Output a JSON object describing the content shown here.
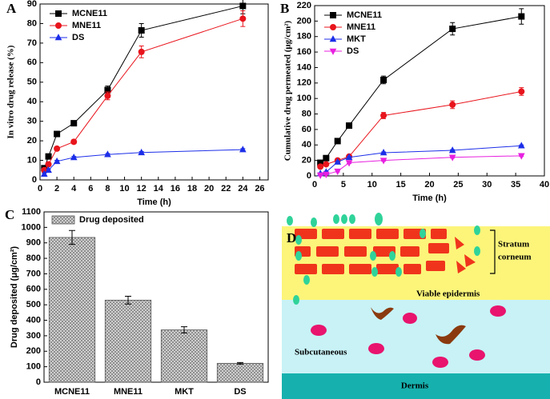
{
  "chart_data": [
    {
      "type": "line",
      "label": "A",
      "xlabel": "Time (h)",
      "ylabel": "In vitro drug release (%)",
      "x": [
        0.5,
        1,
        2,
        4,
        8,
        12,
        24
      ],
      "xlim": [
        0,
        27
      ],
      "xticks": [
        0,
        2,
        4,
        6,
        8,
        10,
        12,
        14,
        16,
        18,
        20,
        22,
        24,
        26
      ],
      "ylim": [
        0,
        90
      ],
      "yticks": [
        0,
        10,
        20,
        30,
        40,
        50,
        60,
        70,
        80,
        90
      ],
      "legend": "top-left",
      "series": [
        {
          "name": "MCNE11",
          "color": "#000000",
          "marker": "square",
          "values": [
            6,
            12,
            23.5,
            29,
            46,
            76.5,
            89
          ],
          "errors": [
            1,
            1,
            1,
            1,
            2,
            3.5,
            4
          ]
        },
        {
          "name": "MNE11",
          "color": "#e8141c",
          "marker": "circle",
          "values": [
            5,
            8,
            16,
            19.5,
            43,
            65.5,
            82.5
          ],
          "errors": [
            1,
            1,
            1,
            1,
            2,
            3,
            4
          ]
        },
        {
          "name": "DS",
          "color": "#1c2ee8",
          "marker": "triangle",
          "values": [
            3,
            5,
            9.5,
            11.5,
            13,
            14,
            15.5
          ],
          "errors": [
            0.5,
            0.5,
            0.5,
            0.5,
            0.5,
            0.5,
            0.5
          ]
        }
      ]
    },
    {
      "type": "line",
      "label": "B",
      "xlabel": "Time (h)",
      "ylabel": "Cumulative drug permeated (μg/cm²)",
      "x": [
        1,
        2,
        4,
        6,
        12,
        24,
        36
      ],
      "xlim": [
        0,
        40
      ],
      "xticks": [
        0,
        5,
        10,
        15,
        20,
        25,
        30,
        35,
        40
      ],
      "ylim": [
        0,
        220
      ],
      "yticks": [
        0,
        20,
        40,
        60,
        80,
        100,
        120,
        140,
        160,
        180,
        200,
        220
      ],
      "legend": "top-left",
      "series": [
        {
          "name": "MCNE11",
          "color": "#000000",
          "marker": "square",
          "values": [
            17,
            23,
            45,
            65,
            124,
            190,
            206
          ],
          "errors": [
            2,
            2,
            2,
            3,
            5,
            8,
            10
          ]
        },
        {
          "name": "MNE11",
          "color": "#e8141c",
          "marker": "circle",
          "values": [
            12,
            15,
            20,
            25,
            78,
            92,
            109
          ],
          "errors": [
            1,
            1,
            2,
            2,
            4,
            5,
            5
          ]
        },
        {
          "name": "MKT",
          "color": "#1c2ee8",
          "marker": "triangle",
          "values": [
            3,
            5,
            18,
            24,
            30,
            33,
            39
          ],
          "errors": [
            1,
            1,
            1,
            1,
            1,
            1,
            1
          ]
        },
        {
          "name": "DS",
          "color": "#e820e0",
          "marker": "triangle-down",
          "values": [
            1,
            2,
            6,
            17,
            20,
            24,
            26
          ],
          "errors": [
            1,
            1,
            1,
            1,
            1,
            1,
            1
          ]
        }
      ]
    },
    {
      "type": "bar",
      "label": "C",
      "ylabel": "Drug deposited (μg/cm²)",
      "categories": [
        "MCNE11",
        "MNE11",
        "MKT",
        "DS"
      ],
      "ylim": [
        0,
        1100
      ],
      "yticks": [
        0,
        100,
        200,
        300,
        400,
        500,
        600,
        700,
        800,
        900,
        1000,
        1100
      ],
      "legend": "top-left",
      "series": [
        {
          "name": "Drug deposited",
          "color": "#a8a8a8",
          "values": [
            935,
            530,
            338,
            122
          ],
          "errors": [
            45,
            25,
            20,
            5
          ]
        }
      ]
    }
  ],
  "diagram": {
    "label": "D",
    "stratum": [
      "Stratum",
      "corneum"
    ],
    "viable": "Viable epidermis",
    "subcutaneous": "Subcutaneous",
    "dermis": "Dermis"
  }
}
